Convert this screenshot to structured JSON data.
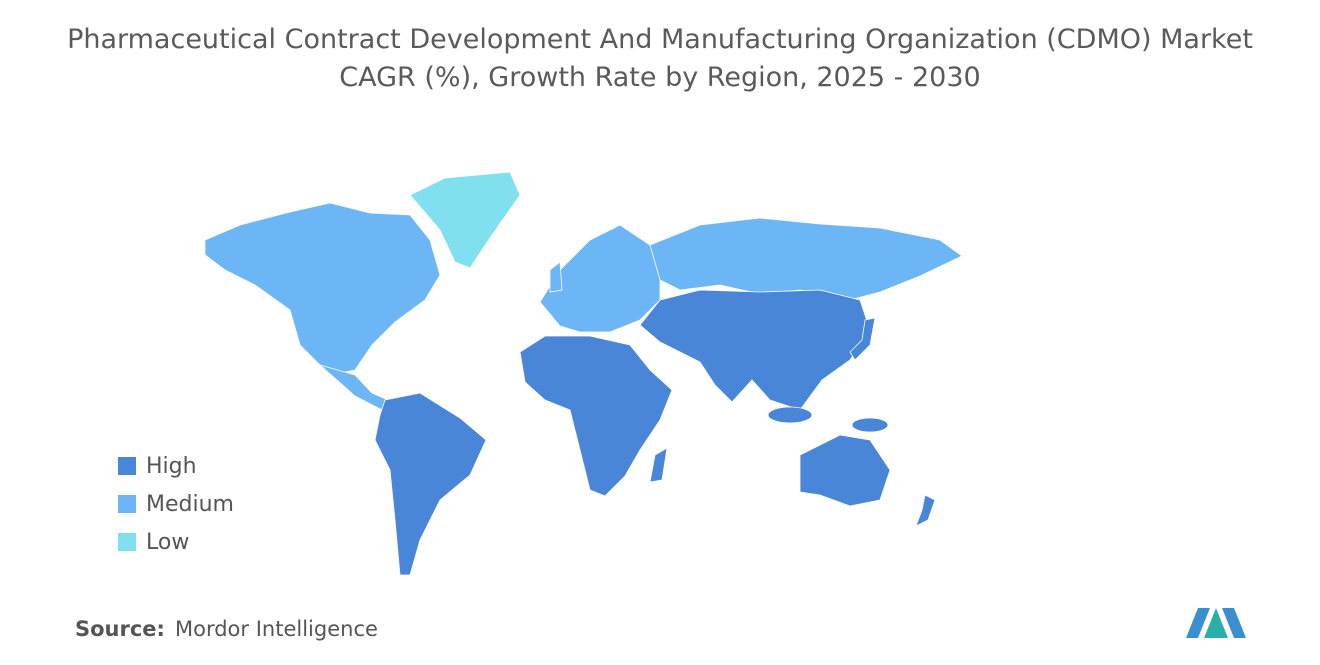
{
  "title": [
    "Pharmaceutical Contract Development And Manufacturing Organization (CDMO) Market",
    "CAGR (%), Growth Rate by Region, 2025 - 2030"
  ],
  "legend": [
    {
      "label": "High",
      "color": "#4a86d8"
    },
    {
      "label": "Medium",
      "color": "#6cb6f5"
    },
    {
      "label": "Low",
      "color": "#80e0f0"
    }
  ],
  "source": {
    "label": "Source:",
    "text": "Mordor Intelligence"
  }
}
